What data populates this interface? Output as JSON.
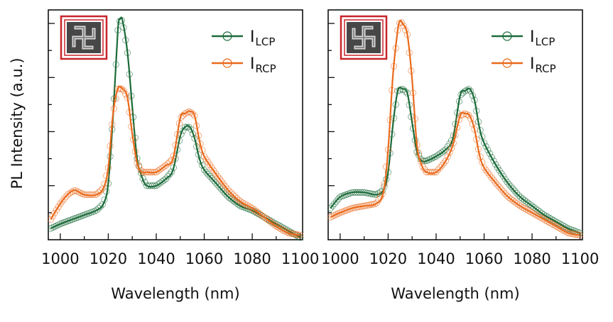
{
  "colors": {
    "lcp": "#1b6b3a",
    "rcp": "#ea6a1c",
    "inset_border": "#c8252b",
    "axis": "#111111"
  },
  "ylabel": "PL Intensity (a.u.)",
  "chart_data": [
    {
      "type": "line",
      "xlabel": "Wavelength (nm)",
      "xlim": [
        995,
        1101
      ],
      "ylim": [
        0,
        1.02
      ],
      "xticks": [
        "1000",
        "1020",
        "1040",
        "1060",
        "1080",
        "1100"
      ],
      "inset": "left-handed gammadion micrograph",
      "legend": {
        "placement": "top-right",
        "entries": [
          {
            "main": "I",
            "sub": "LCP"
          },
          {
            "main": "I",
            "sub": "RCP"
          }
        ]
      },
      "series": [
        {
          "name": "ILCP",
          "color": "#1b6b3a",
          "x": [
            996,
            1000,
            1005,
            1010,
            1015,
            1018,
            1020,
            1022,
            1024,
            1025,
            1026,
            1028,
            1030,
            1032,
            1034,
            1036,
            1040,
            1044,
            1047,
            1050,
            1052,
            1054,
            1056,
            1058,
            1060,
            1065,
            1070,
            1075,
            1080,
            1085,
            1090,
            1095,
            1100
          ],
          "y": [
            0.05,
            0.07,
            0.09,
            0.11,
            0.13,
            0.16,
            0.25,
            0.55,
            0.93,
            0.98,
            0.97,
            0.83,
            0.59,
            0.36,
            0.28,
            0.24,
            0.24,
            0.27,
            0.31,
            0.46,
            0.5,
            0.5,
            0.45,
            0.36,
            0.31,
            0.25,
            0.19,
            0.15,
            0.13,
            0.1,
            0.07,
            0.04,
            0.01
          ]
        },
        {
          "name": "IRCP",
          "color": "#ea6a1c",
          "x": [
            996,
            1000,
            1003,
            1006,
            1010,
            1015,
            1018,
            1020,
            1022,
            1024,
            1026,
            1028,
            1030,
            1032,
            1034,
            1036,
            1040,
            1044,
            1047,
            1050,
            1052,
            1054,
            1056,
            1058,
            1060,
            1065,
            1070,
            1075,
            1080,
            1085,
            1090,
            1095,
            1100
          ],
          "y": [
            0.09,
            0.16,
            0.2,
            0.22,
            0.2,
            0.2,
            0.23,
            0.32,
            0.56,
            0.67,
            0.67,
            0.63,
            0.47,
            0.34,
            0.3,
            0.3,
            0.3,
            0.33,
            0.36,
            0.54,
            0.56,
            0.57,
            0.55,
            0.44,
            0.37,
            0.29,
            0.22,
            0.17,
            0.14,
            0.1,
            0.06,
            0.03,
            0.02
          ]
        }
      ]
    },
    {
      "type": "line",
      "xlabel": "Wavelength (nm)",
      "xlim": [
        995,
        1101
      ],
      "ylim": [
        0,
        1.02
      ],
      "xticks": [
        "1000",
        "1020",
        "1040",
        "1060",
        "1080",
        "1100"
      ],
      "inset": "right-handed gammadion micrograph",
      "legend": {
        "placement": "top-right",
        "entries": [
          {
            "main": "I",
            "sub": "LCP"
          },
          {
            "main": "I",
            "sub": "RCP"
          }
        ]
      },
      "series": [
        {
          "name": "ILCP",
          "color": "#1b6b3a",
          "x": [
            996,
            1000,
            1005,
            1010,
            1015,
            1018,
            1020,
            1022,
            1024,
            1026,
            1028,
            1030,
            1032,
            1034,
            1036,
            1040,
            1044,
            1047,
            1050,
            1052,
            1054,
            1056,
            1058,
            1060,
            1065,
            1070,
            1075,
            1080,
            1085,
            1090,
            1095,
            1100
          ],
          "y": [
            0.14,
            0.19,
            0.21,
            0.21,
            0.2,
            0.22,
            0.3,
            0.51,
            0.66,
            0.67,
            0.65,
            0.52,
            0.39,
            0.35,
            0.35,
            0.37,
            0.4,
            0.45,
            0.64,
            0.66,
            0.67,
            0.62,
            0.5,
            0.43,
            0.33,
            0.25,
            0.19,
            0.15,
            0.11,
            0.08,
            0.05,
            0.03
          ]
        },
        {
          "name": "IRCP",
          "color": "#ea6a1c",
          "x": [
            996,
            1000,
            1005,
            1010,
            1015,
            1018,
            1020,
            1022,
            1024,
            1025,
            1026,
            1028,
            1030,
            1032,
            1034,
            1036,
            1040,
            1044,
            1047,
            1050,
            1052,
            1054,
            1056,
            1058,
            1060,
            1065,
            1070,
            1075,
            1080,
            1085,
            1090,
            1095,
            1100
          ],
          "y": [
            0.1,
            0.12,
            0.14,
            0.15,
            0.16,
            0.21,
            0.4,
            0.73,
            0.93,
            0.97,
            0.96,
            0.91,
            0.71,
            0.42,
            0.33,
            0.3,
            0.3,
            0.35,
            0.42,
            0.55,
            0.56,
            0.55,
            0.49,
            0.38,
            0.32,
            0.25,
            0.19,
            0.15,
            0.12,
            0.09,
            0.06,
            0.03,
            0.02
          ]
        }
      ]
    }
  ]
}
